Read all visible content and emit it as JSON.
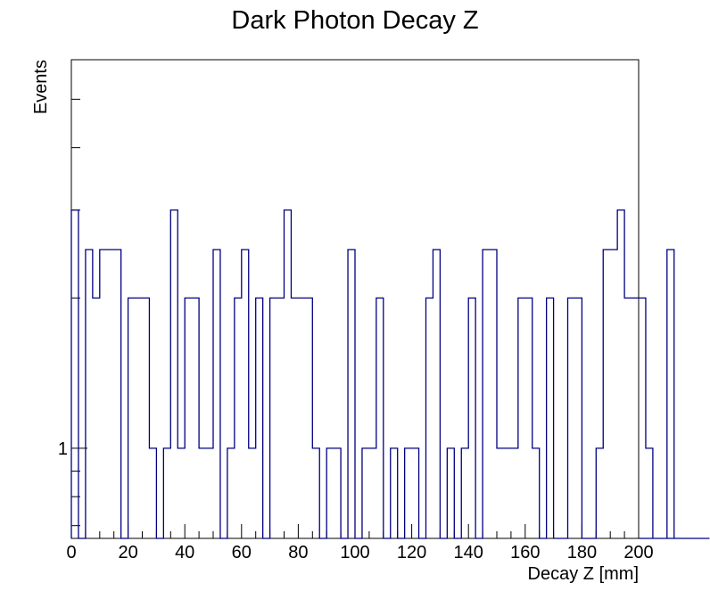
{
  "chart_data": {
    "type": "histogram",
    "title": "Dark Photon Decay Z",
    "xlabel": "Decay Z [mm]",
    "ylabel": "Events",
    "xlim": [
      0,
      200
    ],
    "ylim": [
      0.66,
      6.0
    ],
    "yscale": "log",
    "grid": false,
    "bin_width": 2.5,
    "x_ticks": [
      "0",
      "20",
      "40",
      "60",
      "80",
      "100",
      "120",
      "140",
      "160",
      "180",
      "200"
    ],
    "x_tick_values": [
      0,
      20,
      40,
      60,
      80,
      100,
      120,
      140,
      160,
      180,
      200
    ],
    "y_tick_labels": [
      "1"
    ],
    "y_tick_values": [
      1
    ],
    "line_color": "#000080",
    "series": [
      {
        "values": [
          3,
          0,
          2.5,
          2,
          2.5,
          2.5,
          2.5,
          0,
          2,
          2,
          2,
          1,
          0,
          1,
          3,
          1,
          2,
          2,
          1,
          1,
          2.5,
          0,
          1,
          2,
          2.5,
          1,
          2,
          0,
          2,
          2,
          3,
          2,
          2,
          2,
          1,
          0,
          1,
          1,
          0,
          2.5,
          0,
          1,
          1,
          2,
          0,
          1,
          0,
          1,
          1,
          0,
          2,
          2.5,
          0,
          1,
          0,
          1,
          2,
          0,
          2.5,
          2.5,
          1,
          1,
          1,
          2,
          2,
          1,
          0,
          2,
          0,
          0,
          2,
          2,
          0,
          0,
          1,
          2.5,
          2.5,
          3,
          2,
          2,
          2,
          1,
          0,
          0,
          2.5,
          0,
          0,
          0,
          0,
          0
        ]
      }
    ]
  }
}
